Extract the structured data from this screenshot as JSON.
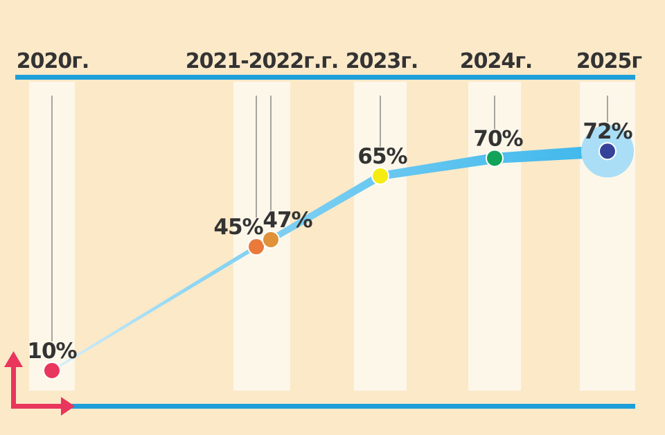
{
  "chart_data": {
    "type": "line",
    "categories": [
      "2020г.",
      "2021-2022г.г.",
      "2023г.",
      "2024г.",
      "2025г"
    ],
    "points": [
      {
        "category": "2020г.",
        "value": 10,
        "label": "10%",
        "color": "#e8365d"
      },
      {
        "category": "2021-2022г.г.",
        "value": 45,
        "label": "45%",
        "color": "#ea7a3a"
      },
      {
        "category": "2021-2022г.г.",
        "value": 47,
        "label": "47%",
        "color": "#e0923a"
      },
      {
        "category": "2023г.",
        "value": 65,
        "label": "65%",
        "color": "#f5ec12"
      },
      {
        "category": "2024г.",
        "value": 70,
        "label": "70%",
        "color": "#12a35a"
      },
      {
        "category": "2025г",
        "value": 72,
        "label": "72%",
        "color": "#36419a"
      }
    ],
    "ylim": [
      0,
      80
    ],
    "grid": false,
    "legend": "none",
    "colors": {
      "background": "#fbe9c8",
      "column": "#fdf7ea",
      "axis": "#1e9fd9",
      "line": "#52c3ee",
      "arrow": "#e8365d",
      "text": "#333333"
    }
  }
}
